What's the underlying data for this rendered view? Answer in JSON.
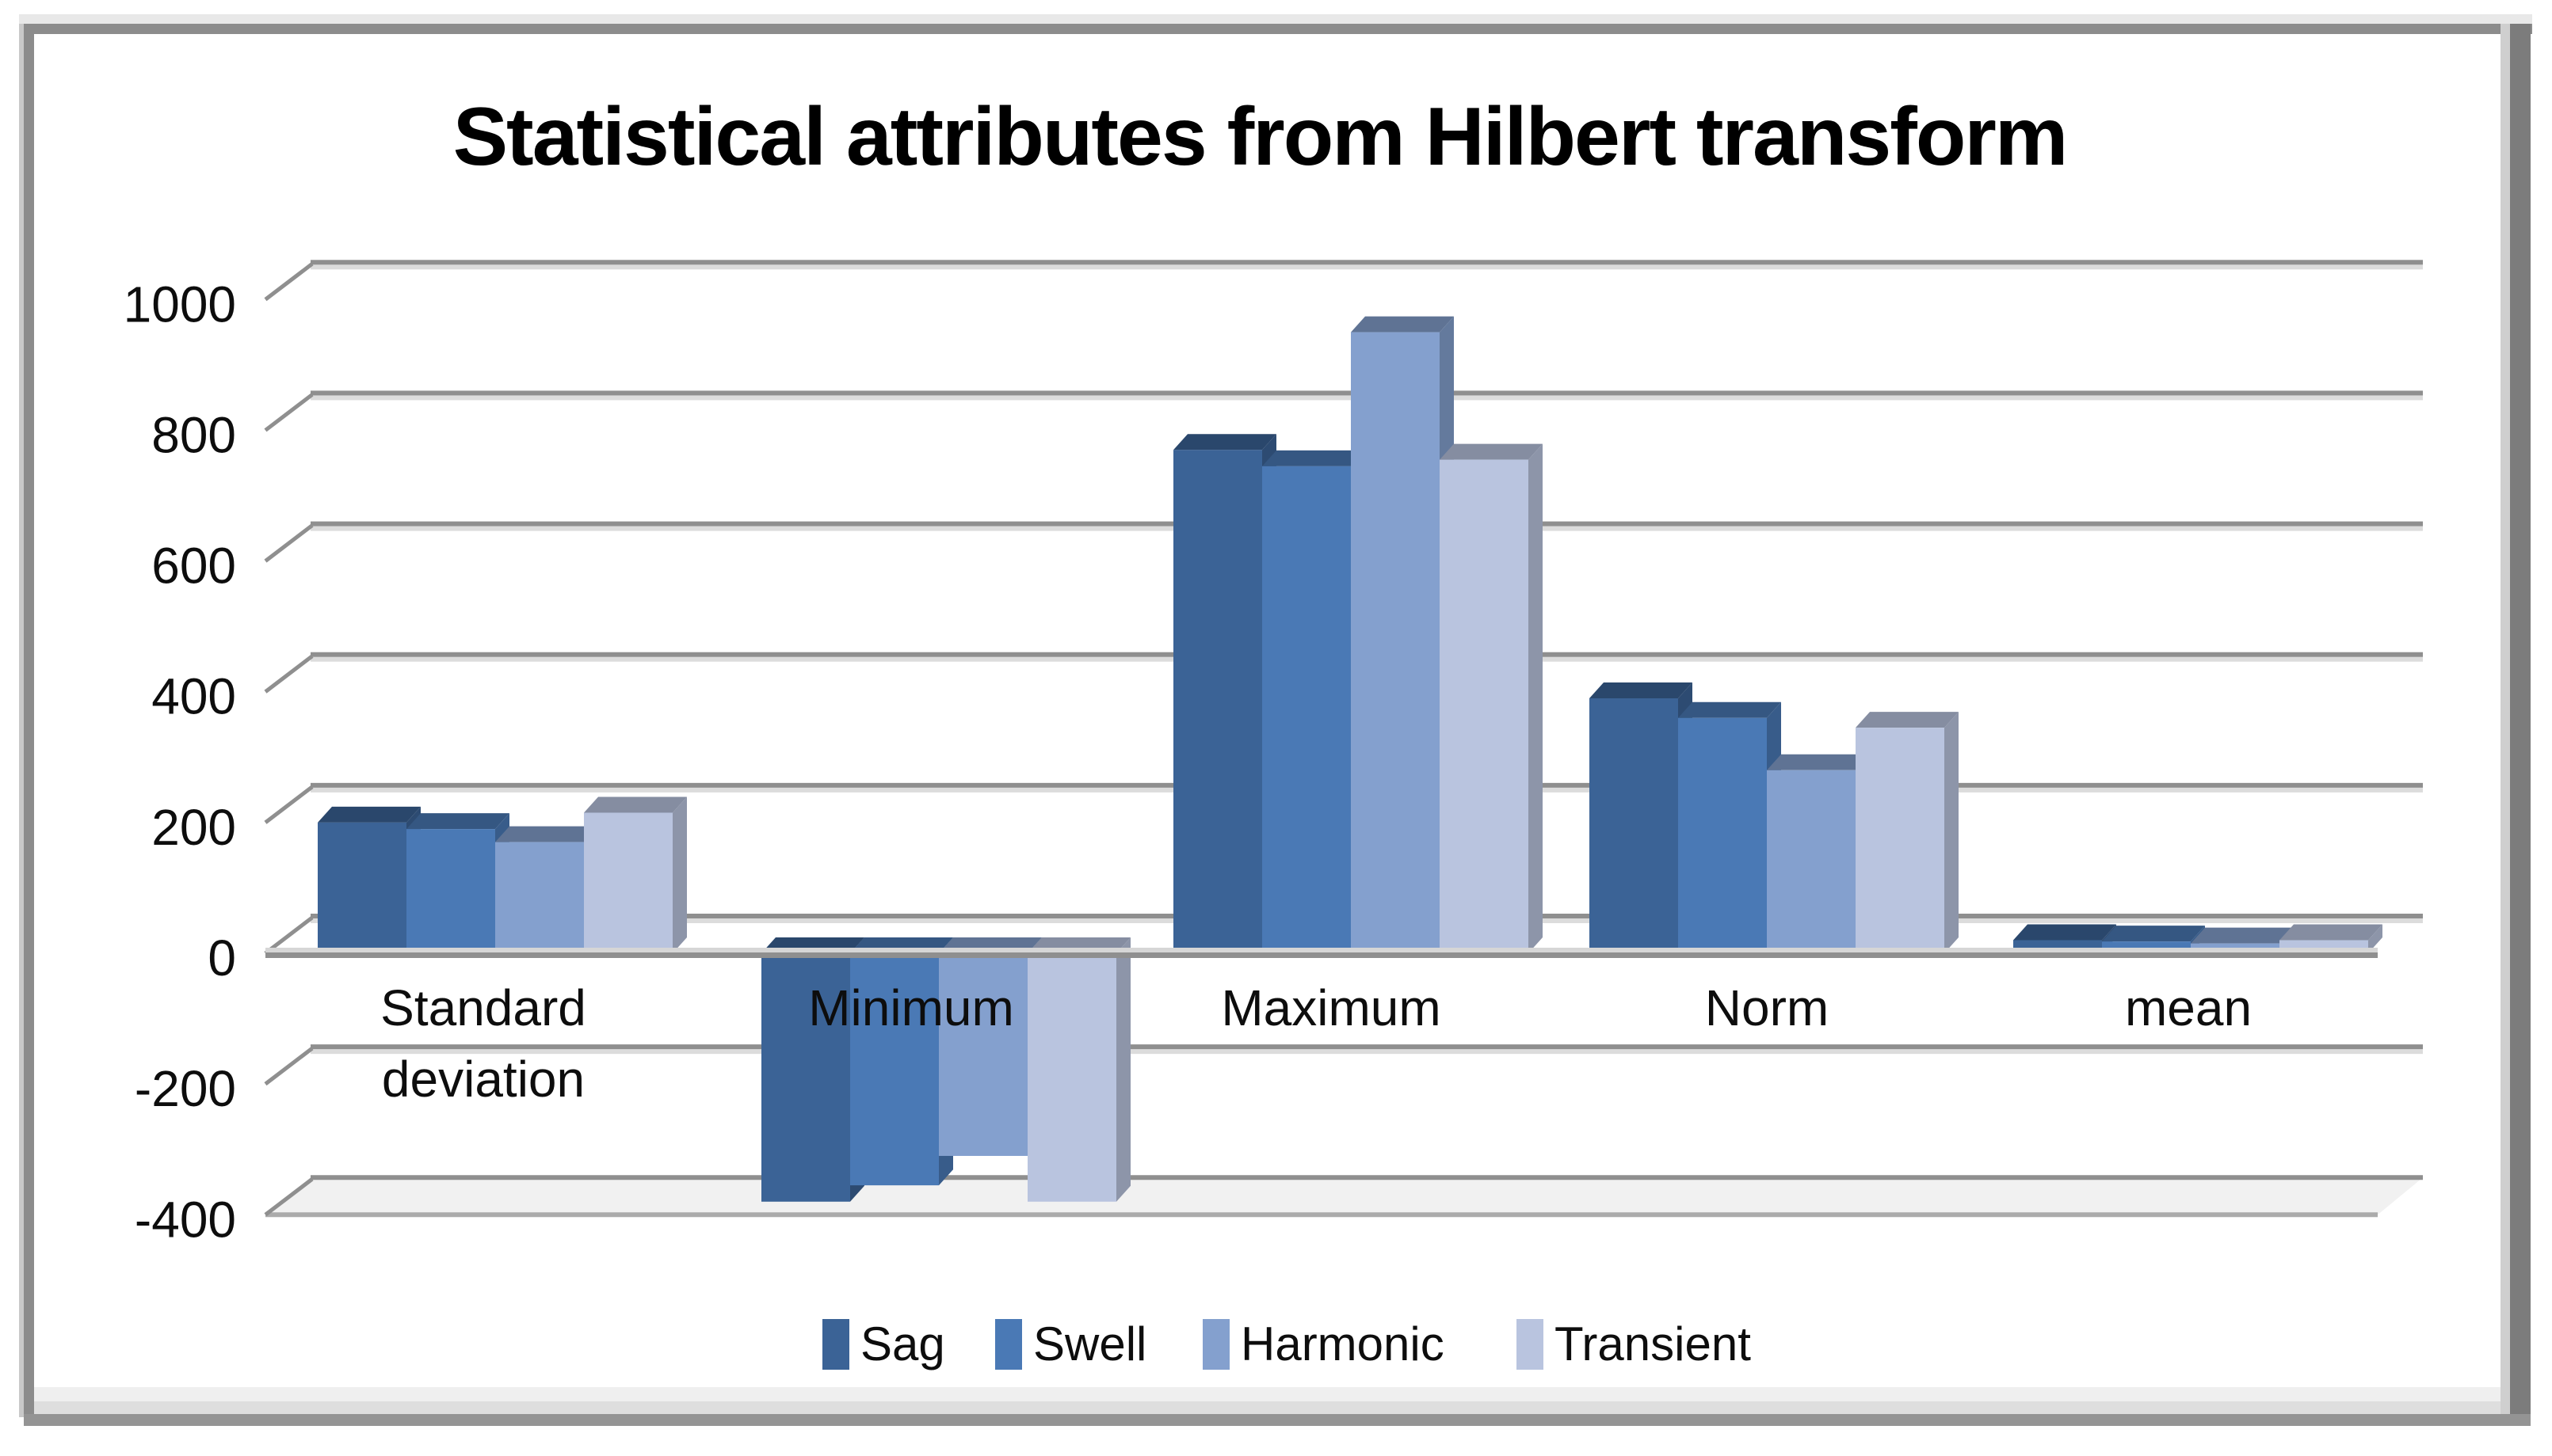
{
  "frame": {
    "border_dark": "#8c8c8c",
    "border_light": "#e8e8e8",
    "bottom_band_light": "#efefef",
    "bottom_band_mid": "#dedede",
    "bottom_band_dark": "#949494"
  },
  "chart_data": {
    "type": "bar",
    "projection": "3d-clustered-column",
    "title": "Statistical attributes from Hilbert transform",
    "categories": [
      "Standard deviation",
      "Minimum",
      "Maximum",
      "Norm",
      "mean"
    ],
    "category_label_lines": [
      [
        "Standard",
        "deviation"
      ],
      [
        "Minimum"
      ],
      [
        "Maximum"
      ],
      [
        "Norm"
      ],
      [
        "mean"
      ]
    ],
    "series": [
      {
        "name": "Sag",
        "color": "#3b6396",
        "values": [
          200,
          -380,
          770,
          390,
          20
        ]
      },
      {
        "name": "Swell",
        "color": "#4a79b5",
        "values": [
          190,
          -355,
          745,
          360,
          18
        ]
      },
      {
        "name": "Harmonic",
        "color": "#84a0ce",
        "values": [
          170,
          -310,
          950,
          280,
          15
        ]
      },
      {
        "name": "Transient",
        "color": "#b9c4df",
        "values": [
          215,
          -380,
          755,
          345,
          20
        ]
      }
    ],
    "xlabel": "",
    "ylabel": "",
    "ylim": [
      -400,
      1000
    ],
    "ytick_step": 200,
    "yticks": [
      1000,
      800,
      600,
      400,
      200,
      0,
      -200,
      -400
    ],
    "grid": true,
    "gridline_color": "#8f8f8f",
    "gridline_echo_color": "#dcdcdc",
    "floor_fill": "#f1f1f1",
    "legend_position": "bottom",
    "text_color": "#0d0d0d"
  }
}
